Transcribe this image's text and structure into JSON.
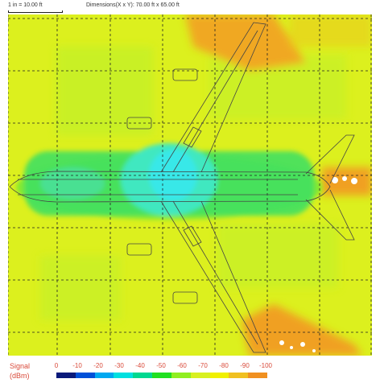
{
  "header": {
    "scale_label": "1 in = 10.00 ft",
    "dimensions_label": "Dimensions(X x Y): 70.00 ft x 65.00 ft"
  },
  "legend": {
    "title_line1": "Signal",
    "title_line2": "(dBm)",
    "ticks": [
      "0",
      "-10",
      "-20",
      "-30",
      "-40",
      "-50",
      "-60",
      "-70",
      "-80",
      "-90",
      "-100"
    ],
    "colors": [
      "#0a1a7a",
      "#0050d8",
      "#00a8f0",
      "#00e0e0",
      "#00d890",
      "#20e020",
      "#90ee20",
      "#d8f020",
      "#f0f000",
      "#f0c020",
      "#f09020"
    ]
  },
  "colors": {
    "background_signal": "#dcf01e",
    "strong_signal": "#20e060",
    "strongest_signal": "#30e0e0",
    "weak_signal": "#f0a020",
    "grid": "#222222",
    "outline": "#444444"
  }
}
